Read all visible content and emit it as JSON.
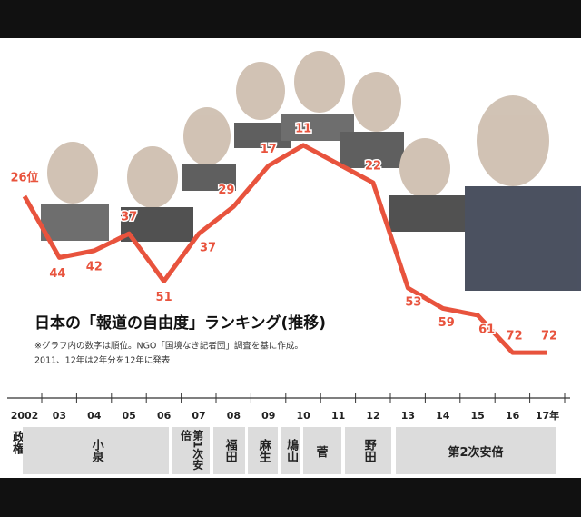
{
  "chart_data": {
    "type": "line",
    "title": "日本の「報道の自由度」ランキング(推移)",
    "notes": [
      "※グラフ内の数字は順位。NGO「国境なき記者団」調査を基に作成。",
      "2011、12年は2年分を12年に発表"
    ],
    "categories": [
      "2002",
      "03",
      "04",
      "05",
      "06",
      "07",
      "08",
      "09",
      "10",
      "11",
      "12",
      "13",
      "14",
      "15",
      "16",
      "17年"
    ],
    "series": [
      {
        "color": "#e8533d",
        "x": [
          "2002",
          "03",
          "04",
          "05",
          "06",
          "07",
          "08",
          "09",
          "10",
          "12",
          "13",
          "14",
          "15",
          "16",
          "17年"
        ],
        "values": [
          26,
          44,
          42,
          37,
          51,
          37,
          29,
          17,
          11,
          22,
          53,
          59,
          61,
          72,
          72
        ],
        "value_labels": [
          "26位",
          "44",
          "42",
          "37",
          "51",
          "37",
          "29",
          "17",
          "11",
          "22",
          "53",
          "59",
          "61",
          "72",
          "72"
        ]
      }
    ],
    "ylim": [
      -20,
      80
    ],
    "y_reversed": true,
    "government_label": "政権",
    "governments": [
      "小泉",
      "第1次安倍",
      "福田",
      "麻生",
      "鳩山",
      "菅",
      "野田",
      "第2次安倍"
    ]
  }
}
